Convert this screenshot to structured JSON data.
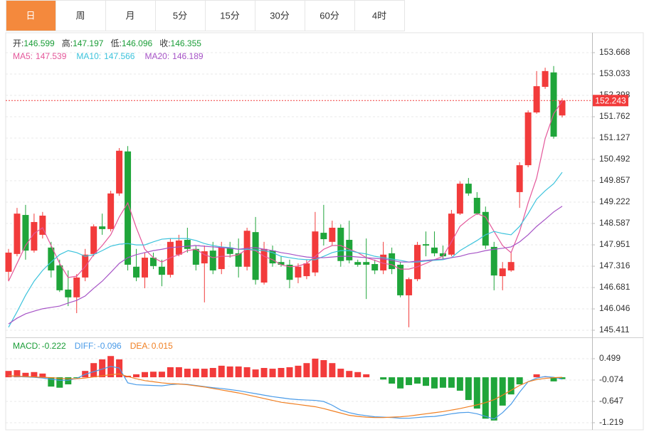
{
  "tabs": [
    "日",
    "周",
    "月",
    "5分",
    "15分",
    "30分",
    "60分",
    "4时"
  ],
  "active_tab": 0,
  "chart_data": [
    {
      "type": "candlestick",
      "open": [
        147.15,
        147.68,
        148.84,
        147.78,
        148.25,
        147.87,
        147.34,
        146.62,
        146.39,
        146.98,
        147.68,
        148.5,
        148.42,
        149.48,
        150.73,
        147.3,
        146.98,
        147.57,
        147.3,
        147.06,
        147.66,
        148.1,
        147.83,
        147.4,
        147.78,
        147.23,
        147.87,
        147.7,
        147.3,
        148.33,
        146.83,
        147.78,
        147.44,
        147.36,
        146.98,
        147.02,
        147.13,
        148.31,
        148.04,
        148.46,
        148.1,
        147.44,
        147.44,
        147.38,
        147.19,
        147.7,
        147.36,
        146.45,
        146.93,
        147.97,
        147.87,
        147.7,
        147.66,
        148.88,
        149.77,
        149.35,
        148.93,
        147.89,
        147.02,
        147.19,
        149.52,
        150.32,
        151.89,
        152.65,
        153.08,
        151.8
      ],
      "high": [
        147.83,
        149.05,
        149.14,
        148.88,
        148.93,
        148.04,
        147.51,
        147.19,
        147.08,
        147.83,
        148.56,
        148.88,
        149.56,
        150.83,
        150.89,
        147.83,
        147.72,
        147.72,
        147.51,
        148.14,
        148.25,
        148.46,
        147.93,
        147.93,
        148.04,
        148.04,
        148.04,
        148.14,
        148.46,
        148.78,
        148.04,
        147.93,
        147.61,
        147.51,
        147.4,
        147.51,
        148.93,
        149.14,
        148.67,
        148.56,
        148.67,
        147.51,
        148.14,
        147.51,
        148.04,
        147.87,
        147.44,
        146.98,
        148.04,
        148.35,
        148.35,
        147.93,
        148.99,
        149.84,
        149.94,
        149.52,
        149.09,
        148.04,
        147.44,
        147.72,
        150.41,
        151.95,
        153.12,
        153.22,
        153.27,
        152.31
      ],
      "low": [
        146.87,
        147.61,
        147.51,
        147.72,
        148.14,
        146.98,
        146.55,
        146.13,
        145.92,
        146.87,
        147.61,
        148.25,
        148.35,
        149.41,
        147.19,
        146.87,
        146.66,
        147.23,
        146.72,
        146.98,
        147.61,
        147.72,
        147.19,
        146.24,
        147.08,
        147.08,
        147.57,
        146.98,
        147.19,
        146.77,
        146.77,
        147.3,
        147.3,
        146.66,
        146.81,
        146.93,
        147.02,
        147.93,
        147.93,
        147.3,
        147.4,
        147.3,
        146.34,
        147.08,
        147.08,
        147.08,
        146.39,
        145.5,
        146.87,
        147.61,
        147.61,
        147.51,
        147.61,
        148.84,
        149.41,
        148.84,
        147.83,
        146.6,
        146.6,
        147.15,
        149.05,
        150.26,
        151.85,
        152.59,
        151.11,
        151.74
      ],
      "close": [
        147.72,
        148.88,
        147.78,
        148.63,
        148.82,
        147.19,
        146.6,
        146.39,
        146.98,
        147.66,
        148.5,
        148.42,
        149.48,
        150.75,
        147.36,
        146.98,
        147.57,
        147.32,
        147.06,
        148.04,
        148.08,
        147.83,
        147.36,
        147.76,
        147.19,
        147.87,
        147.68,
        147.3,
        148.37,
        146.91,
        147.83,
        147.4,
        147.36,
        146.91,
        147.3,
        147.4,
        148.35,
        148.12,
        148.46,
        147.47,
        147.49,
        147.36,
        147.36,
        147.19,
        147.66,
        147.23,
        146.45,
        146.93,
        147.95,
        147.93,
        147.7,
        147.61,
        148.88,
        149.77,
        149.48,
        148.88,
        147.93,
        147.04,
        147.25,
        147.44,
        150.32,
        151.89,
        152.67,
        153.12,
        151.17,
        152.243
      ],
      "up_color": "#f23b3b",
      "down_color": "#1fa53a",
      "info": [
        {
          "label": "开:",
          "value": 146.599
        },
        {
          "label": "高:",
          "value": 147.197
        },
        {
          "label": "低:",
          "value": 146.096
        },
        {
          "label": "收:",
          "value": 146.355
        }
      ],
      "info_color": "#1a9d37",
      "series": [
        {
          "name": "MA5:",
          "value": 147.539,
          "color": "#e4579a",
          "values": [
            146.87,
            147.4,
            147.93,
            148.29,
            148.46,
            147.93,
            147.4,
            146.98,
            147.02,
            147.3,
            147.66,
            147.93,
            148.25,
            148.78,
            149.2,
            148.46,
            147.82,
            147.57,
            147.44,
            147.57,
            147.66,
            147.78,
            147.82,
            147.66,
            147.57,
            147.61,
            147.61,
            147.66,
            147.82,
            147.78,
            147.61,
            147.51,
            147.36,
            147.3,
            147.32,
            147.4,
            147.61,
            147.82,
            147.93,
            147.93,
            147.82,
            147.72,
            147.57,
            147.49,
            147.4,
            147.36,
            147.23,
            147.23,
            147.3,
            147.4,
            147.51,
            147.61,
            148.04,
            148.5,
            148.71,
            148.88,
            148.78,
            148.35,
            147.93,
            147.72,
            148.35,
            149.2,
            149.94,
            151.11,
            151.85,
            152.23
          ]
        },
        {
          "name": "MA10:",
          "value": 147.566,
          "color": "#3cc3dc",
          "values": [
            145.5,
            145.96,
            146.45,
            146.87,
            147.19,
            147.44,
            147.66,
            147.78,
            147.72,
            147.61,
            147.66,
            147.78,
            147.91,
            147.97,
            147.99,
            147.95,
            147.95,
            148.04,
            148.12,
            148.14,
            148.14,
            148.14,
            148.08,
            147.99,
            147.93,
            147.89,
            147.87,
            147.82,
            147.82,
            147.8,
            147.78,
            147.72,
            147.61,
            147.57,
            147.53,
            147.51,
            147.51,
            147.61,
            147.72,
            147.78,
            147.78,
            147.72,
            147.68,
            147.61,
            147.57,
            147.53,
            147.49,
            147.44,
            147.44,
            147.47,
            147.49,
            147.51,
            147.57,
            147.78,
            147.93,
            148.08,
            148.25,
            148.35,
            148.29,
            148.25,
            148.5,
            148.88,
            149.31,
            149.56,
            149.77,
            150.11
          ]
        },
        {
          "name": "MA20:",
          "value": 146.189,
          "color": "#a653c6",
          "values": [
            145.6,
            145.77,
            145.9,
            145.98,
            146.05,
            146.09,
            146.13,
            146.22,
            146.3,
            146.43,
            146.66,
            146.87,
            147.13,
            147.4,
            147.57,
            147.66,
            147.72,
            147.78,
            147.82,
            147.87,
            147.89,
            147.91,
            147.93,
            147.91,
            147.89,
            147.87,
            147.85,
            147.82,
            147.85,
            147.87,
            147.82,
            147.78,
            147.72,
            147.68,
            147.63,
            147.59,
            147.57,
            147.57,
            147.59,
            147.61,
            147.61,
            147.59,
            147.57,
            147.55,
            147.53,
            147.49,
            147.44,
            147.44,
            147.47,
            147.49,
            147.51,
            147.53,
            147.57,
            147.61,
            147.68,
            147.72,
            147.78,
            147.82,
            147.85,
            147.89,
            148.04,
            148.25,
            148.5,
            148.71,
            148.93,
            149.1
          ]
        }
      ],
      "ylim": [
        145.2,
        154.26
      ],
      "yticks": [
        145.411,
        146.046,
        146.681,
        147.316,
        147.951,
        148.587,
        149.222,
        149.857,
        150.492,
        151.127,
        151.762,
        152.398,
        153.033,
        153.668
      ],
      "grid": true,
      "current_price": 152.243,
      "current_color": "#f23b3b"
    },
    {
      "type": "macd",
      "histogram_name": "MACD:",
      "histogram_value": -0.222,
      "histogram_color": "#1a9d37",
      "histogram": [
        0.17,
        0.19,
        0.12,
        0.14,
        0.1,
        -0.25,
        -0.28,
        -0.19,
        -0.02,
        0.17,
        0.38,
        0.48,
        0.57,
        0.48,
        0.04,
        0.08,
        0.14,
        0.15,
        0.15,
        0.27,
        0.27,
        0.23,
        0.23,
        0.23,
        0.25,
        0.31,
        0.29,
        0.29,
        0.27,
        0.21,
        0.25,
        0.23,
        0.25,
        0.27,
        0.31,
        0.38,
        0.5,
        0.46,
        0.38,
        0.23,
        0.17,
        0.14,
        0.08,
        0.0,
        -0.06,
        -0.17,
        -0.3,
        -0.21,
        -0.17,
        -0.23,
        -0.3,
        -0.28,
        -0.28,
        -0.36,
        -0.61,
        -0.84,
        -1.11,
        -1.16,
        -0.76,
        -0.46,
        -0.19,
        0.0,
        0.08,
        0.02,
        -0.11,
        -0.05
      ],
      "up_color": "#f23b3b",
      "down_color": "#1fa53a",
      "series": [
        {
          "name": "DIFF:",
          "value": -0.096,
          "color": "#4a9be8",
          "values": [
            0.04,
            0.02,
            0.01,
            0.0,
            -0.02,
            -0.05,
            -0.08,
            -0.08,
            -0.03,
            0.08,
            0.15,
            0.22,
            0.29,
            0.25,
            -0.15,
            -0.2,
            -0.21,
            -0.22,
            -0.23,
            -0.2,
            -0.18,
            -0.19,
            -0.22,
            -0.25,
            -0.28,
            -0.3,
            -0.33,
            -0.36,
            -0.4,
            -0.44,
            -0.48,
            -0.52,
            -0.55,
            -0.58,
            -0.6,
            -0.61,
            -0.62,
            -0.65,
            -0.75,
            -0.88,
            -0.95,
            -1.0,
            -1.03,
            -1.06,
            -1.07,
            -1.08,
            -1.1,
            -1.1,
            -1.08,
            -1.06,
            -1.05,
            -1.02,
            -0.98,
            -0.95,
            -0.94,
            -0.98,
            -1.05,
            -1.12,
            -0.95,
            -0.72,
            -0.4,
            -0.12,
            -0.02,
            0.02,
            0.0,
            -0.05
          ]
        },
        {
          "name": "DEA:",
          "value": 0.015,
          "color": "#f07f22",
          "values": [
            0.04,
            0.03,
            0.02,
            0.01,
            0.0,
            -0.01,
            -0.03,
            -0.04,
            -0.04,
            -0.02,
            0.01,
            0.04,
            0.07,
            0.09,
            0.02,
            -0.04,
            -0.09,
            -0.12,
            -0.15,
            -0.17,
            -0.18,
            -0.2,
            -0.23,
            -0.26,
            -0.3,
            -0.34,
            -0.38,
            -0.42,
            -0.47,
            -0.52,
            -0.57,
            -0.62,
            -0.67,
            -0.7,
            -0.73,
            -0.76,
            -0.79,
            -0.84,
            -0.9,
            -0.96,
            -1.02,
            -1.05,
            -1.07,
            -1.08,
            -1.08,
            -1.07,
            -1.06,
            -1.04,
            -1.01,
            -0.98,
            -0.95,
            -0.92,
            -0.88,
            -0.84,
            -0.79,
            -0.74,
            -0.68,
            -0.6,
            -0.48,
            -0.35,
            -0.22,
            -0.12,
            -0.06,
            -0.03,
            -0.01,
            0.0
          ]
        }
      ],
      "ylim": [
        -1.411,
        1.033
      ],
      "yticks": [
        -1.219,
        -0.647,
        -0.074,
        0.499
      ],
      "grid": true
    }
  ]
}
